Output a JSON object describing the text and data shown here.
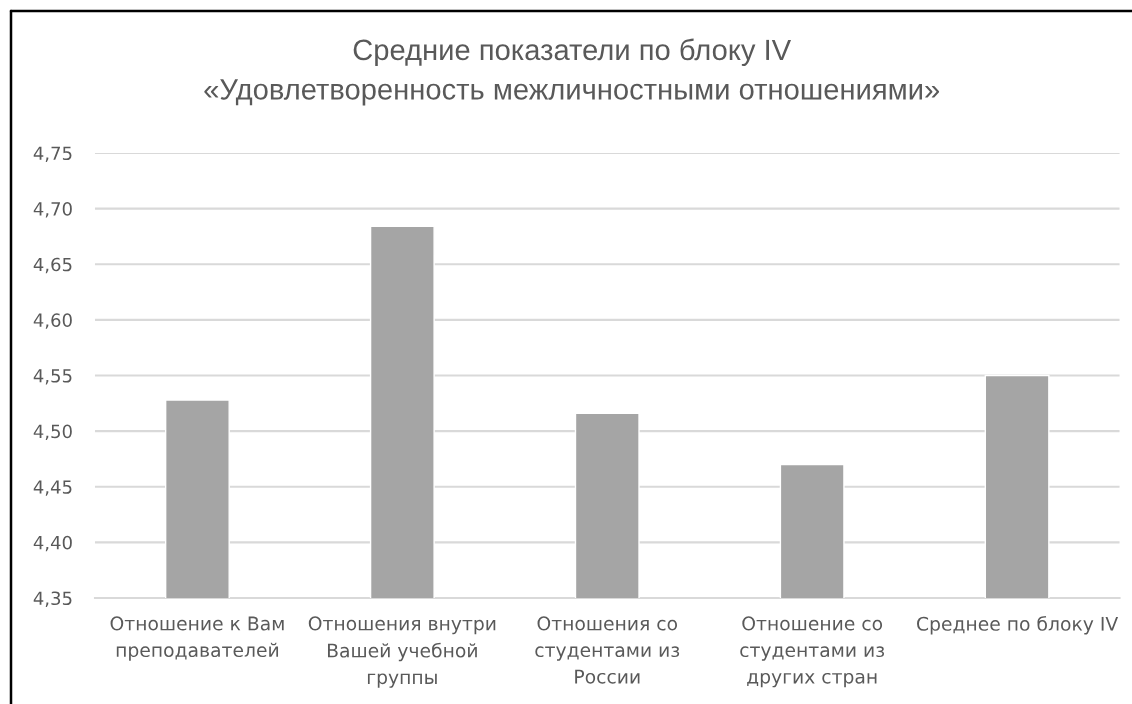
{
  "chart_data": {
    "type": "bar",
    "title": "Средние показатели по блоку IV\n«Удовлетворенность межличностными отношениями»",
    "categories": [
      "Отношение к Вам\nпреподавателей",
      "Отношения внутри\nВашей учебной\nгруппы",
      "Отношения со\nстудентами из\nРоссии",
      "Отношение со\nстудентами из\nдругих стран",
      "Среднее по блоку IV"
    ],
    "values": [
      4.528,
      4.684,
      4.516,
      4.47,
      4.55
    ],
    "color": "#a5a5a5",
    "ylim": [
      4.35,
      4.75
    ],
    "yticks": [
      {
        "value": 4.35,
        "label": "4,35"
      },
      {
        "value": 4.4,
        "label": "4,40"
      },
      {
        "value": 4.45,
        "label": "4,45"
      },
      {
        "value": 4.5,
        "label": "4,50"
      },
      {
        "value": 4.55,
        "label": "4,55"
      },
      {
        "value": 4.6,
        "label": "4,60"
      },
      {
        "value": 4.65,
        "label": "4,65"
      },
      {
        "value": 4.7,
        "label": "4,70"
      },
      {
        "value": 4.75,
        "label": "4,75"
      }
    ],
    "grid": "y"
  }
}
